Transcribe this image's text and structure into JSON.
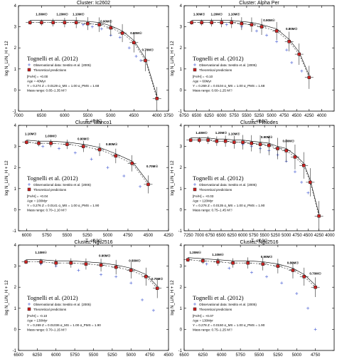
{
  "figure": {
    "ylabel": "log N_Li/N_H + 12",
    "xlabel": "T_eff [K]",
    "legend": {
      "title": "Tognelli et al. (2012)",
      "obs": "Observational data: Sestito et al. (2005)",
      "theo": "Theoretical predictions",
      "theo_note": "(Dashed = no error bars)"
    }
  },
  "chart_data": [
    {
      "type": "scatter",
      "title": "Cluster: Ic2602",
      "xlim": [
        7000,
        3750
      ],
      "xticks": [
        7000,
        6500,
        6000,
        5500,
        5000,
        4500,
        4000,
        3750
      ],
      "ylim": [
        -1,
        4
      ],
      "yticks": [
        -1,
        0,
        1,
        2,
        3,
        4
      ],
      "mass_labels": [
        {
          "t": "1.30M☉",
          "x": 6500,
          "y": 3.55
        },
        {
          "t": "1.20M☉",
          "x": 6050,
          "y": 3.55
        },
        {
          "t": "1.10M☉",
          "x": 5700,
          "y": 3.55
        },
        {
          "t": "0.90M☉",
          "x": 5100,
          "y": 3.2
        },
        {
          "t": "0.80M☉",
          "x": 4450,
          "y": 2.65
        },
        {
          "t": "0.70M☉",
          "x": 4200,
          "y": 1.85
        }
      ],
      "model_points": [
        {
          "x": 6750,
          "y": 3.2
        },
        {
          "x": 6500,
          "y": 3.2
        },
        {
          "x": 6250,
          "y": 3.2
        },
        {
          "x": 6000,
          "y": 3.2
        },
        {
          "x": 5750,
          "y": 3.2
        },
        {
          "x": 5500,
          "y": 3.15
        },
        {
          "x": 5250,
          "y": 3.1
        },
        {
          "x": 5000,
          "y": 2.95
        },
        {
          "x": 4750,
          "y": 2.7
        },
        {
          "x": 4500,
          "y": 2.25
        },
        {
          "x": 4250,
          "y": 1.4
        },
        {
          "x": 4000,
          "y": -0.4
        }
      ],
      "obs_points": [
        {
          "x": 5600,
          "y": 3.1
        },
        {
          "x": 5400,
          "y": 3.0
        },
        {
          "x": 5200,
          "y": 2.9
        },
        {
          "x": 5000,
          "y": 2.6
        },
        {
          "x": 4800,
          "y": 2.5
        },
        {
          "x": 4600,
          "y": 2.0
        },
        {
          "x": 4450,
          "y": 1.6
        },
        {
          "x": 4350,
          "y": 1.4
        }
      ],
      "legend_text": [
        "[Fe/H] = +0.00",
        "Age = 40Myr",
        "Y = 0.274  Z = 0.0129  α_MS = 1.00  α_PMS = 1.68",
        "Mass range: 0.85–1.35 M☉"
      ]
    },
    {
      "type": "scatter",
      "title": "Cluster: Alpha Per",
      "xlim": [
        6750,
        3750
      ],
      "xticks": [
        6750,
        6500,
        6250,
        6000,
        5750,
        5500,
        5250,
        5000,
        4750,
        4500,
        4250,
        4000
      ],
      "ylim": [
        -1,
        4
      ],
      "yticks": [
        -1,
        0,
        1,
        2,
        3,
        4
      ],
      "mass_labels": [
        {
          "t": "1.30M☉",
          "x": 6450,
          "y": 3.55
        },
        {
          "t": "1.20M☉",
          "x": 6100,
          "y": 3.55
        },
        {
          "t": "1.10M☉",
          "x": 5750,
          "y": 3.55
        },
        {
          "t": "0.90M☉",
          "x": 5050,
          "y": 3.25
        },
        {
          "t": "0.80M☉",
          "x": 4600,
          "y": 2.85
        }
      ],
      "model_points": [
        {
          "x": 6600,
          "y": 3.2
        },
        {
          "x": 6400,
          "y": 3.2
        },
        {
          "x": 6200,
          "y": 3.2
        },
        {
          "x": 6000,
          "y": 3.2
        },
        {
          "x": 5800,
          "y": 3.2
        },
        {
          "x": 5600,
          "y": 3.15
        },
        {
          "x": 5400,
          "y": 3.1
        },
        {
          "x": 5200,
          "y": 3.0
        },
        {
          "x": 4900,
          "y": 2.8
        },
        {
          "x": 4650,
          "y": 2.3
        },
        {
          "x": 4450,
          "y": 1.7
        },
        {
          "x": 4250,
          "y": 0.6
        }
      ],
      "obs_points": [
        {
          "x": 5900,
          "y": 3.1
        },
        {
          "x": 5600,
          "y": 3.0
        },
        {
          "x": 5300,
          "y": 2.8
        },
        {
          "x": 5100,
          "y": 2.6
        },
        {
          "x": 4900,
          "y": 2.3
        },
        {
          "x": 4700,
          "y": 1.9
        },
        {
          "x": 4600,
          "y": 1.3
        },
        {
          "x": 4400,
          "y": 0.9
        }
      ],
      "legend_text": [
        "[Fe/H] = -0.10",
        "Age = 60Myr",
        "Y = 0.269  Z = 0.0104  α_MS = 1.00  α_PMS = 1.68",
        "Mass range: 0.60–1.25 M☉"
      ]
    },
    {
      "type": "scatter",
      "title": "Cluster: Blanco1",
      "xlim": [
        6100,
        4250
      ],
      "xticks": [
        6000,
        5750,
        5500,
        5250,
        5000,
        4750,
        4500,
        4250
      ],
      "ylim": [
        -1,
        4
      ],
      "yticks": [
        -1,
        0,
        1,
        2,
        3,
        4
      ],
      "mass_labels": [
        {
          "t": "1.10M☉",
          "x": 5950,
          "y": 3.55
        },
        {
          "t": "1.00M☉",
          "x": 5700,
          "y": 3.45
        },
        {
          "t": "0.90M☉",
          "x": 5300,
          "y": 3.3
        },
        {
          "t": "0.80M☉",
          "x": 4950,
          "y": 3.05
        },
        {
          "t": "0.70M☉",
          "x": 4450,
          "y": 2.0
        }
      ],
      "model_points": [
        {
          "x": 6000,
          "y": 3.2
        },
        {
          "x": 5850,
          "y": 3.15
        },
        {
          "x": 5700,
          "y": 3.15
        },
        {
          "x": 5500,
          "y": 3.1
        },
        {
          "x": 5300,
          "y": 3.0
        },
        {
          "x": 5100,
          "y": 2.85
        },
        {
          "x": 4900,
          "y": 2.55
        },
        {
          "x": 4700,
          "y": 2.2
        },
        {
          "x": 4500,
          "y": 1.2
        }
      ],
      "obs_points": [
        {
          "x": 5800,
          "y": 3.0
        },
        {
          "x": 5600,
          "y": 2.9
        },
        {
          "x": 5400,
          "y": 2.7
        },
        {
          "x": 5200,
          "y": 2.4
        },
        {
          "x": 5000,
          "y": 2.0
        },
        {
          "x": 4800,
          "y": 1.6
        },
        {
          "x": 4600,
          "y": 1.1
        }
      ],
      "legend_text": [
        "[Fe/H] = +0.04",
        "Age = 100Myr",
        "Y = 0.276  Z = 0.0141  α_MS = 1.00  α_PMS = 1.90",
        "Mass range: 0.70–1.10 M☉"
      ]
    },
    {
      "type": "scatter",
      "title": "Cluster: Pleiodes",
      "xlim": [
        7350,
        3900
      ],
      "xticks": [
        7250,
        7000,
        6750,
        6500,
        6250,
        6000,
        5750,
        5500,
        5250,
        5000,
        4750,
        4500,
        4250,
        4000
      ],
      "ylim": [
        -1,
        4
      ],
      "yticks": [
        -1,
        0,
        1,
        2,
        3,
        4
      ],
      "mass_labels": [
        {
          "t": "1.40M☉",
          "x": 6950,
          "y": 3.6
        },
        {
          "t": "1.20M☉",
          "x": 6500,
          "y": 3.6
        },
        {
          "t": "1.10M☉",
          "x": 6200,
          "y": 3.55
        },
        {
          "t": "0.90M☉",
          "x": 5450,
          "y": 3.4
        },
        {
          "t": "0.80M☉",
          "x": 4950,
          "y": 3.2
        }
      ],
      "model_points": [
        {
          "x": 7200,
          "y": 3.3
        },
        {
          "x": 7000,
          "y": 3.3
        },
        {
          "x": 6800,
          "y": 3.3
        },
        {
          "x": 6600,
          "y": 3.25
        },
        {
          "x": 6400,
          "y": 3.25
        },
        {
          "x": 6200,
          "y": 3.2
        },
        {
          "x": 6000,
          "y": 3.2
        },
        {
          "x": 5800,
          "y": 3.15
        },
        {
          "x": 5600,
          "y": 3.1
        },
        {
          "x": 5400,
          "y": 3.05
        },
        {
          "x": 5200,
          "y": 2.9
        },
        {
          "x": 5000,
          "y": 2.8
        },
        {
          "x": 4800,
          "y": 2.5
        },
        {
          "x": 4600,
          "y": 2.1
        },
        {
          "x": 4450,
          "y": 1.3
        },
        {
          "x": 4250,
          "y": -0.3
        }
      ],
      "obs_points": [
        {
          "x": 6000,
          "y": 3.1
        },
        {
          "x": 5800,
          "y": 3.0
        },
        {
          "x": 5600,
          "y": 2.9
        },
        {
          "x": 5400,
          "y": 2.8
        },
        {
          "x": 5200,
          "y": 2.6
        },
        {
          "x": 5000,
          "y": 2.3
        },
        {
          "x": 4800,
          "y": 1.8
        },
        {
          "x": 4650,
          "y": 1.3
        },
        {
          "x": 4500,
          "y": 0.8
        }
      ],
      "legend_text": [
        "[Fe/H] = +0.03",
        "Age = 120Myr",
        "Y = 0.276  Z = 0.0135  α_MS = 1.00  α_PMS = 1.90",
        "Mass range: 0.75–1.45 M☉"
      ]
    },
    {
      "type": "scatter",
      "title": "Cluster: Ngc2516",
      "xlim": [
        6500,
        4500
      ],
      "xticks": [
        6500,
        6250,
        6000,
        5750,
        5500,
        5250,
        5000,
        4750,
        4500
      ],
      "ylim": [
        -1,
        4
      ],
      "yticks": [
        -1,
        0,
        1,
        2,
        3,
        4
      ],
      "mass_labels": [
        {
          "t": "1.10M☉",
          "x": 6200,
          "y": 3.6
        },
        {
          "t": "0.90M☉",
          "x": 5350,
          "y": 3.45
        },
        {
          "t": "0.80M☉",
          "x": 4950,
          "y": 3.2
        },
        {
          "t": "0.70M☉",
          "x": 4650,
          "y": 2.35
        }
      ],
      "model_points": [
        {
          "x": 6400,
          "y": 3.2
        },
        {
          "x": 6200,
          "y": 3.2
        },
        {
          "x": 6000,
          "y": 3.15
        },
        {
          "x": 5800,
          "y": 3.15
        },
        {
          "x": 5600,
          "y": 3.1
        },
        {
          "x": 5400,
          "y": 3.05
        },
        {
          "x": 5200,
          "y": 2.95
        },
        {
          "x": 5000,
          "y": 2.8
        },
        {
          "x": 4800,
          "y": 2.5
        },
        {
          "x": 4650,
          "y": 1.95
        }
      ],
      "obs_points": [
        {
          "x": 6200,
          "y": 3.1
        },
        {
          "x": 6000,
          "y": 3.0
        },
        {
          "x": 5700,
          "y": 2.8
        },
        {
          "x": 5400,
          "y": 2.6
        },
        {
          "x": 5200,
          "y": 2.5
        },
        {
          "x": 5000,
          "y": 2.2
        },
        {
          "x": 4850,
          "y": 1.4
        },
        {
          "x": 4700,
          "y": 0.9
        }
      ],
      "legend_text": [
        "[Fe/H] = -0.10",
        "Age = 130Myr",
        "Y = 0.269  Z = 0.01036  α_MS = 1.00  α_PMS = 1.90",
        "Mass range: 0.70–1.15 M☉"
      ]
    },
    {
      "type": "scatter",
      "title": "Cluster: Ngc2516",
      "xlim": [
        6500,
        4500
      ],
      "xticks": [
        6500,
        6250,
        6000,
        5750,
        5500,
        5250,
        5000,
        4750
      ],
      "ylim": [
        -1,
        4
      ],
      "yticks": [
        -1,
        0,
        1,
        2,
        3,
        4
      ],
      "mass_labels": [
        {
          "t": "1.20M☉",
          "x": 6350,
          "y": 3.6
        },
        {
          "t": "1.10M☉",
          "x": 6050,
          "y": 3.5
        },
        {
          "t": "0.90M☉",
          "x": 5400,
          "y": 3.4
        },
        {
          "t": "0.80M☉",
          "x": 5050,
          "y": 3.1
        },
        {
          "t": "0.70M☉",
          "x": 4750,
          "y": 2.6
        }
      ],
      "model_points": [
        {
          "x": 6450,
          "y": 3.3
        },
        {
          "x": 6250,
          "y": 3.25
        },
        {
          "x": 6050,
          "y": 3.2
        },
        {
          "x": 5850,
          "y": 3.15
        },
        {
          "x": 5650,
          "y": 3.15
        },
        {
          "x": 5450,
          "y": 3.1
        },
        {
          "x": 5250,
          "y": 3.0
        },
        {
          "x": 5050,
          "y": 2.8
        },
        {
          "x": 4900,
          "y": 2.5
        },
        {
          "x": 4750,
          "y": 2.0
        }
      ],
      "obs_points": [
        {
          "x": 6200,
          "y": 3.1
        },
        {
          "x": 5900,
          "y": 2.9
        },
        {
          "x": 5600,
          "y": 2.7
        },
        {
          "x": 5400,
          "y": 2.5
        },
        {
          "x": 5200,
          "y": 2.2
        },
        {
          "x": 5000,
          "y": 1.7
        },
        {
          "x": 4850,
          "y": 1.0
        },
        {
          "x": 4750,
          "y": 0.0
        }
      ],
      "legend_text": [
        "[Fe/H] = +0.07",
        "Age = 130Myr",
        "Y = 0.278  Z = 0.0150  α_MS = 1.00  α_PMS = 1.90",
        "Mass range: 0.75–1.25 M☉"
      ]
    }
  ]
}
